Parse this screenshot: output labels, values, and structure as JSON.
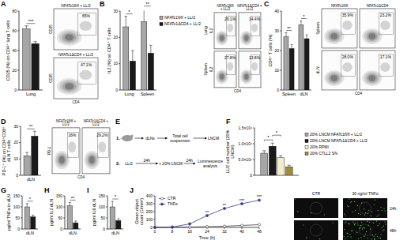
{
  "panels": [
    "A",
    "B",
    "C",
    "D",
    "E",
    "F",
    "G",
    "H",
    "I",
    "J"
  ],
  "chart_data": [
    {
      "type": "bar",
      "y_label": "CD25 (%) on CD4⁺ lung T cells",
      "categories": [
        "Lung"
      ],
      "series": [
        {
          "color": "#a6a6a6",
          "values": [
            62
          ],
          "errors": [
            3
          ]
        },
        {
          "color": "#1a1a1a",
          "values": [
            47
          ],
          "errors": [
            2
          ]
        }
      ],
      "ylim": [
        0,
        80
      ],
      "yticks": [
        0,
        20,
        40,
        60,
        80
      ],
      "annotations": [
        "***"
      ]
    },
    {
      "type": "bar",
      "y_label": "IL2 (%) on CD4⁺ T cells",
      "categories": [
        "Lung",
        "Spleen"
      ],
      "series": [
        {
          "name": "NFATc1fl/fl + LL/2",
          "color": "#a6a6a6",
          "values": [
            24,
            26
          ],
          "errors": [
            4,
            5
          ]
        },
        {
          "name": "NFATc1ΔCD4 + LL/2",
          "color": "#1a1a1a",
          "values": [
            11,
            14
          ],
          "errors": [
            4,
            3
          ]
        }
      ],
      "ylim": [
        0,
        30
      ],
      "yticks": [
        0,
        10,
        20,
        30
      ],
      "annotations": [
        "*",
        "**"
      ],
      "legend": "right"
    },
    {
      "type": "bar",
      "y_label": "CD4⁺ T cells (%)",
      "categories": [
        "Spleen",
        "dLN"
      ],
      "series": [
        {
          "color": "#a6a6a6",
          "values": [
            27,
            33
          ],
          "errors": [
            2,
            2
          ]
        },
        {
          "color": "#1a1a1a",
          "values": [
            21,
            26
          ],
          "errors": [
            2,
            2
          ]
        }
      ],
      "ylim": [
        0,
        40
      ],
      "yticks": [
        0,
        10,
        20,
        30,
        40
      ],
      "annotations": [
        "**",
        "*"
      ]
    },
    {
      "type": "bar",
      "y_label": "PD-1⁺ (%) on CD4⁺CD8⁺ dLN T cells",
      "categories": [
        "dLN"
      ],
      "series": [
        {
          "color": "#a6a6a6",
          "values": [
            12
          ],
          "errors": [
            2
          ]
        },
        {
          "color": "#1a1a1a",
          "values": [
            24
          ],
          "errors": [
            3
          ]
        }
      ],
      "ylim": [
        0,
        30
      ],
      "yticks": [
        0,
        10,
        20,
        30
      ],
      "annotations": [
        "**"
      ]
    },
    {
      "type": "bar",
      "y_label": "LL/2 cell number (20% LNCM)",
      "categories": [
        null
      ],
      "series": [
        {
          "name": "20% LNCM NFATc1fl/fl + LL/2",
          "color": "#a6a6a6",
          "values": [
            700000
          ],
          "errors": [
            80000
          ]
        },
        {
          "name": "20% LNCM NFATc1ΔCD4 + LL/2",
          "color": "#1a1a1a",
          "values": [
            920000
          ],
          "errors": [
            100000
          ]
        },
        {
          "name": "20% RPMI",
          "color": "#f2eecb",
          "values": [
            560000
          ],
          "errors": [
            60000
          ]
        },
        {
          "name": "20% CTLL2 SN",
          "color": "#a08c3c",
          "values": [
            270000
          ],
          "errors": [
            50000
          ]
        }
      ],
      "ylim": [
        0,
        1500000
      ],
      "yticks": [
        0,
        {
          "value": 500000,
          "label": "5.0×10⁵"
        },
        {
          "value": 1000000,
          "label": "1.0×10⁶"
        },
        {
          "value": 1500000,
          "label": "1.5×10⁶"
        }
      ],
      "annotations": [
        "*",
        "*"
      ],
      "legend": "right"
    },
    {
      "type": "bar",
      "y_label": "pg/ml TNFα in dLN",
      "categories": [
        "dLN"
      ],
      "series": [
        {
          "color": "#a6a6a6",
          "values": [
            100
          ],
          "errors": [
            15
          ]
        },
        {
          "color": "#1a1a1a",
          "values": [
            55
          ],
          "errors": [
            8
          ]
        }
      ],
      "ylim": [
        0,
        150
      ],
      "yticks": [
        0,
        50,
        100,
        150
      ],
      "annotations": [
        "*"
      ]
    },
    {
      "type": "bar",
      "y_label": "pg/ml IL2 dLN",
      "categories": [
        "dLN"
      ],
      "series": [
        {
          "color": "#a6a6a6",
          "values": [
            105
          ],
          "errors": [
            15
          ]
        },
        {
          "color": "#1a1a1a",
          "values": [
            28
          ],
          "errors": [
            8
          ]
        }
      ],
      "ylim": [
        0,
        150
      ],
      "yticks": [
        0,
        50,
        100,
        150
      ],
      "annotations": [
        "**"
      ]
    },
    {
      "type": "bar",
      "y_label": "pg/ml IL6 dLN",
      "categories": [
        "dLN"
      ],
      "series": [
        {
          "color": "#a6a6a6",
          "values": [
            100
          ],
          "errors": [
            25
          ]
        },
        {
          "color": "#1a1a1a",
          "values": [
            38
          ],
          "errors": [
            8
          ]
        }
      ],
      "ylim": [
        0,
        150
      ],
      "yticks": [
        0,
        50,
        100,
        150
      ],
      "annotations": [
        "*"
      ]
    },
    {
      "type": "line",
      "y_label": "Green object count (1/mm²)",
      "x_label": "Time (h)",
      "x": [
        0,
        8,
        16,
        24,
        32,
        40,
        48
      ],
      "series": [
        {
          "name": "CTR",
          "color": "#404040",
          "marker": "open-circle",
          "values": [
            0,
            2,
            5,
            10,
            15,
            25,
            35
          ]
        },
        {
          "name": "TNFα",
          "color": "#3b3b8c",
          "marker": "circle",
          "values": [
            0,
            5,
            45,
            150,
            240,
            300,
            345
          ]
        }
      ],
      "xlim": [
        0,
        48
      ],
      "xticks": [
        0,
        8,
        16,
        24,
        32,
        40,
        48
      ],
      "ylim": [
        0,
        400
      ],
      "yticks": [
        0,
        100,
        200,
        300,
        400
      ],
      "annotations": [
        null,
        null,
        null,
        "**",
        "**",
        "***",
        "***"
      ],
      "legend": "upper left"
    }
  ],
  "flow_plots": [
    {
      "x_label": "CD4",
      "y_label": "CD25",
      "cells": [
        [
          {
            "title": "NFATc1fl/fl + LL/2",
            "value": "65%"
          }
        ],
        [
          {
            "title": "NFATc1ΔCD4 + LL/2",
            "value": "47.1%"
          }
        ]
      ]
    },
    {
      "x_label": "CD4",
      "y_label": "IL2",
      "columns": [
        "NFATc1fl/fl + LL/2",
        "NFATc1ΔCD4 + LL/2"
      ],
      "rows": [
        "Lung",
        "Spleen"
      ],
      "cells": [
        [
          {
            "value": "26.1%"
          },
          {
            "value": "14.4%"
          }
        ],
        [
          {
            "value": "27.8%"
          },
          {
            "value": "13.8%"
          }
        ]
      ]
    },
    {
      "x_label": "CD4",
      "columns": [
        "NFATc1fl/fl",
        "NFATc1ΔCD4"
      ],
      "rows": [
        "Spleen",
        "dLN"
      ],
      "cells": [
        [
          {
            "value": "35.9%"
          },
          {
            "value": "23.2%"
          }
        ],
        [
          {
            "value": "28.0%"
          },
          {
            "value": "17.1%"
          }
        ]
      ]
    },
    {
      "x_label": "CD4",
      "y_label": "PD-1",
      "columns": [
        "NFATc1fl/fl + LL/2",
        "NFATc1ΔCD4 + LL/2"
      ],
      "cells": [
        [
          {
            "value": "16%"
          },
          {
            "value": "29.2%"
          }
        ]
      ]
    }
  ],
  "diagram": {
    "rows": [
      {
        "number": "1.",
        "nodes": [
          "dLNs",
          "Total cell suspension",
          "LNCM"
        ]
      },
      {
        "number": "2.",
        "nodes": [
          "LL/2",
          "+ 20% LNCM",
          "Luminescence analysis"
        ],
        "arrow_labels": [
          "24h",
          "24h"
        ]
      }
    ]
  },
  "micrographs": {
    "columns": [
      "CTR",
      "30 ng/ml TNFα"
    ],
    "rows": [
      "24h",
      "48h"
    ]
  }
}
